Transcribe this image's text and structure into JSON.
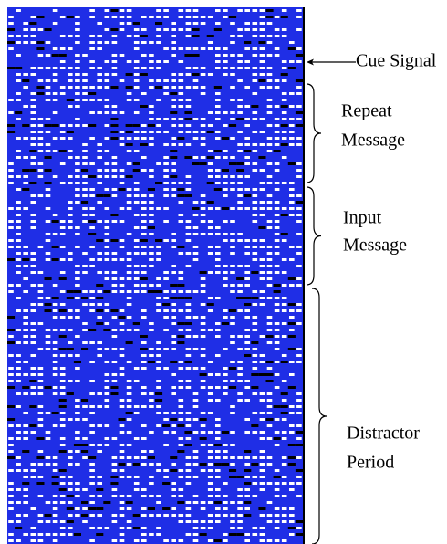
{
  "labels": {
    "cue_signal": "Cue Signal",
    "repeat_message": [
      "Repeat",
      "Message"
    ],
    "input_message": [
      "Input",
      "Message"
    ],
    "distractor_period": [
      "Distractor",
      "Period"
    ]
  }
}
